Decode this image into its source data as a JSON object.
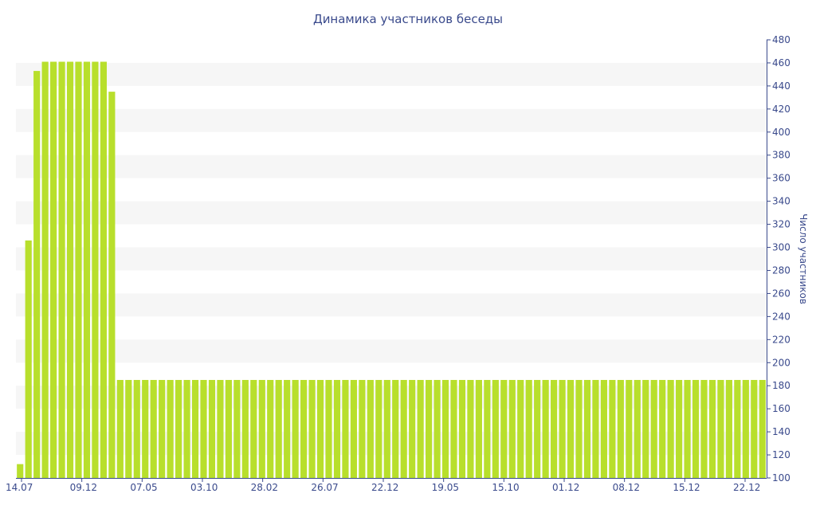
{
  "chart_data": {
    "type": "bar",
    "title": "Динамика участников беседы",
    "xlabel": "",
    "ylabel": "Число участников",
    "y_axis_side": "right",
    "ylim": [
      100,
      480
    ],
    "yticks": [
      100,
      120,
      140,
      160,
      180,
      200,
      220,
      240,
      260,
      280,
      300,
      320,
      340,
      360,
      380,
      400,
      420,
      440,
      460,
      480
    ],
    "x_tick_labels": [
      "14.07",
      "09.12",
      "07.05",
      "03.10",
      "28.02",
      "26.07",
      "22.12",
      "19.05",
      "15.10",
      "01.12",
      "08.12",
      "15.12",
      "22.12"
    ],
    "grid": "alternating horizontal bands",
    "series": [
      {
        "values": [
          112,
          306,
          453,
          461,
          461,
          461,
          461,
          461,
          461,
          461,
          461,
          435,
          185,
          185,
          185,
          185,
          185,
          185,
          185,
          185,
          185,
          185,
          185,
          185,
          185,
          185,
          185,
          185,
          185,
          185,
          185,
          185,
          185,
          185,
          185,
          185,
          185,
          185,
          185,
          185,
          185,
          185,
          185,
          185,
          185,
          185,
          185,
          185,
          185,
          185,
          185,
          185,
          185,
          185,
          185,
          185,
          185,
          185,
          185,
          185,
          185,
          185,
          185,
          185,
          185,
          185,
          185,
          185,
          185,
          185,
          185,
          185,
          185,
          185,
          185,
          185,
          185,
          185,
          185,
          185,
          185,
          185,
          185,
          185,
          185,
          185,
          185,
          185,
          185,
          185
        ]
      }
    ],
    "colors": {
      "bar": "#b8df2c",
      "text": "#3a4a8c",
      "band": "#f6f6f6",
      "axis": "#3a4a8c"
    }
  }
}
